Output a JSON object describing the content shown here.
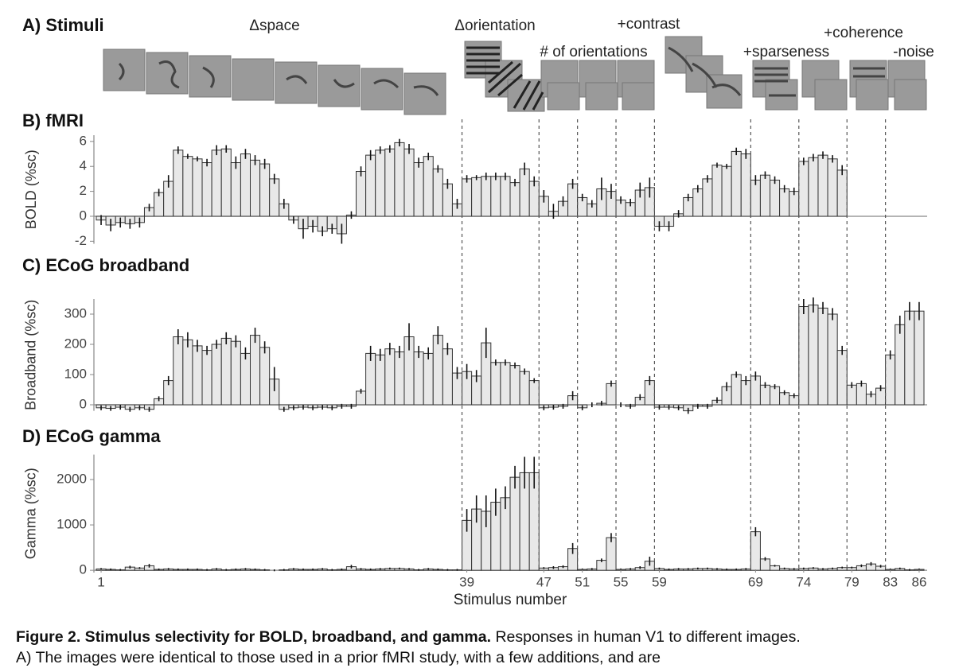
{
  "panel_a": {
    "title": "A) Stimuli",
    "labels": [
      "Δspace",
      "Δorientation",
      "+contrast",
      "# of orientations",
      "+sparseness",
      "+coherence",
      "-noise"
    ]
  },
  "chart_data": [
    {
      "type": "bar",
      "title": "B) fMRI",
      "ylabel": "BOLD (%sc)",
      "color": "#e8e8e8",
      "x": [
        1,
        2,
        3,
        4,
        5,
        6,
        7,
        8,
        9,
        10,
        11,
        12,
        13,
        14,
        15,
        16,
        17,
        18,
        19,
        20,
        21,
        22,
        23,
        24,
        25,
        26,
        27,
        28,
        29,
        30,
        31,
        32,
        33,
        34,
        35,
        36,
        37,
        38,
        39,
        40,
        41,
        42,
        43,
        44,
        45,
        46,
        47,
        48,
        49,
        50,
        51,
        52,
        53,
        54,
        55,
        56,
        57,
        58,
        59,
        60,
        61,
        62,
        63,
        64,
        65,
        66,
        67,
        68,
        69,
        70,
        71,
        72,
        73,
        74,
        75,
        76,
        77,
        78,
        79,
        80,
        81,
        82,
        83,
        84,
        85,
        86
      ],
      "values": [
        -0.3,
        -0.7,
        -0.5,
        -0.6,
        -0.5,
        0.7,
        1.9,
        2.8,
        5.3,
        4.8,
        4.6,
        4.3,
        5.3,
        5.4,
        4.3,
        5.0,
        4.5,
        4.2,
        3.0,
        1.0,
        -0.3,
        -1.0,
        -0.8,
        -1.2,
        -1.0,
        -1.4,
        0.1,
        3.6,
        4.9,
        5.3,
        5.4,
        5.9,
        5.4,
        4.3,
        4.8,
        3.8,
        2.6,
        1.0,
        3.0,
        3.1,
        3.2,
        3.2,
        3.2,
        2.7,
        3.8,
        2.8,
        1.6,
        0.4,
        1.2,
        2.6,
        1.5,
        1.0,
        2.2,
        2.0,
        1.3,
        1.1,
        2.1,
        2.3,
        -0.8,
        -0.8,
        0.2,
        1.5,
        2.2,
        3.0,
        4.1,
        4.0,
        5.2,
        5.0,
        2.9,
        3.3,
        2.9,
        2.2,
        2.0,
        4.4,
        4.7,
        4.9,
        4.6,
        3.7,
        null,
        null,
        null,
        null,
        null,
        null,
        null,
        null
      ],
      "errors": [
        0.4,
        0.5,
        0.4,
        0.4,
        0.4,
        0.3,
        0.3,
        0.5,
        0.3,
        0.2,
        0.2,
        0.3,
        0.4,
        0.3,
        0.5,
        0.4,
        0.4,
        0.4,
        0.4,
        0.4,
        0.3,
        0.8,
        0.5,
        0.4,
        0.4,
        0.8,
        0.3,
        0.4,
        0.4,
        0.3,
        0.3,
        0.3,
        0.4,
        0.4,
        0.3,
        0.3,
        0.4,
        0.4,
        0.3,
        0.2,
        0.3,
        0.3,
        0.3,
        0.3,
        0.5,
        0.4,
        0.5,
        0.6,
        0.4,
        0.4,
        0.3,
        0.3,
        0.9,
        0.6,
        0.3,
        0.3,
        0.6,
        0.8,
        0.4,
        0.4,
        0.3,
        0.3,
        0.3,
        0.3,
        0.2,
        0.2,
        0.3,
        0.4,
        0.4,
        0.3,
        0.3,
        0.3,
        0.3,
        0.3,
        0.3,
        0.3,
        0.3,
        0.4,
        null,
        null,
        null,
        null,
        null,
        null,
        null,
        null
      ],
      "xlim": [
        0.5,
        86.5
      ],
      "ylim": [
        -2.2,
        6.5
      ],
      "yticks": [
        -2,
        0,
        2,
        4,
        6
      ]
    },
    {
      "type": "bar",
      "title": "C) ECoG broadband",
      "ylabel": "Broadband (%sc)",
      "color": "#e8e8e8",
      "x": [
        1,
        2,
        3,
        4,
        5,
        6,
        7,
        8,
        9,
        10,
        11,
        12,
        13,
        14,
        15,
        16,
        17,
        18,
        19,
        20,
        21,
        22,
        23,
        24,
        25,
        26,
        27,
        28,
        29,
        30,
        31,
        32,
        33,
        34,
        35,
        36,
        37,
        38,
        39,
        40,
        41,
        42,
        43,
        44,
        45,
        46,
        47,
        48,
        49,
        50,
        51,
        52,
        53,
        54,
        55,
        56,
        57,
        58,
        59,
        60,
        61,
        62,
        63,
        64,
        65,
        66,
        67,
        68,
        69,
        70,
        71,
        72,
        73,
        74,
        75,
        76,
        77,
        78,
        79,
        80,
        81,
        82,
        83,
        84,
        85,
        86
      ],
      "values": [
        -10,
        -12,
        -8,
        -15,
        -10,
        -15,
        20,
        80,
        225,
        215,
        195,
        180,
        200,
        220,
        210,
        170,
        230,
        190,
        85,
        -15,
        -10,
        -8,
        -10,
        -8,
        -10,
        -5,
        -5,
        45,
        170,
        165,
        185,
        175,
        225,
        175,
        170,
        230,
        185,
        105,
        110,
        95,
        205,
        140,
        140,
        130,
        110,
        80,
        -10,
        -8,
        -5,
        30,
        -10,
        0,
        5,
        70,
        0,
        -5,
        25,
        80,
        -8,
        -8,
        -10,
        -20,
        -5,
        -5,
        15,
        60,
        100,
        80,
        95,
        65,
        60,
        40,
        30,
        325,
        330,
        320,
        300,
        180,
        65,
        70,
        35,
        55,
        165,
        265,
        310,
        310
      ],
      "errors": [
        8,
        8,
        8,
        8,
        8,
        8,
        8,
        15,
        25,
        25,
        20,
        15,
        15,
        20,
        20,
        20,
        25,
        20,
        40,
        8,
        8,
        8,
        8,
        8,
        8,
        8,
        8,
        8,
        25,
        20,
        20,
        20,
        45,
        20,
        20,
        30,
        20,
        20,
        25,
        20,
        50,
        10,
        10,
        10,
        10,
        8,
        8,
        8,
        8,
        15,
        8,
        8,
        8,
        10,
        8,
        8,
        10,
        15,
        8,
        8,
        8,
        10,
        8,
        8,
        10,
        15,
        10,
        15,
        15,
        10,
        8,
        8,
        8,
        25,
        25,
        20,
        20,
        15,
        10,
        10,
        10,
        10,
        15,
        30,
        30,
        30
      ],
      "xlim": [
        0.5,
        86.5
      ],
      "ylim": [
        -20,
        350
      ],
      "yticks": [
        0,
        100,
        200,
        300
      ]
    },
    {
      "type": "bar",
      "title": "D) ECoG gamma",
      "ylabel": "Gamma (%sc)",
      "xlabel": "Stimulus number",
      "color": "#e8e8e8",
      "x": [
        1,
        2,
        3,
        4,
        5,
        6,
        7,
        8,
        9,
        10,
        11,
        12,
        13,
        14,
        15,
        16,
        17,
        18,
        19,
        20,
        21,
        22,
        23,
        24,
        25,
        26,
        27,
        28,
        29,
        30,
        31,
        32,
        33,
        34,
        35,
        36,
        37,
        38,
        39,
        40,
        41,
        42,
        43,
        44,
        45,
        46,
        47,
        48,
        49,
        50,
        51,
        52,
        53,
        54,
        55,
        56,
        57,
        58,
        59,
        60,
        61,
        62,
        63,
        64,
        65,
        66,
        67,
        68,
        69,
        70,
        71,
        72,
        73,
        74,
        75,
        76,
        77,
        78,
        79,
        80,
        81,
        82,
        83,
        84,
        85,
        86
      ],
      "values": [
        30,
        20,
        10,
        70,
        50,
        100,
        20,
        30,
        20,
        20,
        20,
        10,
        30,
        10,
        20,
        30,
        20,
        10,
        0,
        10,
        30,
        20,
        20,
        30,
        10,
        20,
        80,
        30,
        20,
        30,
        40,
        40,
        30,
        10,
        30,
        20,
        10,
        10,
        1100,
        1350,
        1300,
        1500,
        1600,
        2050,
        2150,
        2150,
        50,
        60,
        80,
        480,
        20,
        30,
        220,
        720,
        20,
        30,
        60,
        200,
        40,
        20,
        30,
        30,
        40,
        40,
        30,
        20,
        20,
        30,
        850,
        250,
        100,
        40,
        30,
        40,
        50,
        30,
        40,
        60,
        60,
        100,
        140,
        90,
        20,
        40,
        10,
        20
      ],
      "errors": [
        20,
        20,
        20,
        30,
        20,
        40,
        20,
        20,
        20,
        20,
        20,
        20,
        20,
        20,
        20,
        20,
        20,
        20,
        20,
        20,
        20,
        20,
        20,
        20,
        20,
        20,
        40,
        20,
        20,
        20,
        20,
        20,
        20,
        20,
        20,
        20,
        20,
        20,
        250,
        300,
        350,
        300,
        250,
        250,
        350,
        350,
        20,
        30,
        30,
        120,
        20,
        20,
        40,
        100,
        20,
        20,
        30,
        100,
        20,
        20,
        20,
        20,
        20,
        20,
        20,
        20,
        20,
        20,
        100,
        40,
        20,
        20,
        20,
        20,
        20,
        20,
        20,
        20,
        20,
        30,
        40,
        30,
        20,
        20,
        20,
        20
      ],
      "xlim": [
        0.5,
        86.5
      ],
      "ylim": [
        -50,
        2550
      ],
      "yticks": [
        0,
        1000,
        2000
      ],
      "xticks": [
        1,
        39,
        47,
        51,
        55,
        59,
        69,
        74,
        79,
        83,
        86
      ]
    }
  ],
  "caption": {
    "title": "Figure 2. Stimulus selectivity for BOLD, broadband, and gamma.",
    "text": "Responses in human V1 to different images.",
    "line2": "A) The images were identical to those used in a prior fMRI study, with a few additions, and are"
  }
}
